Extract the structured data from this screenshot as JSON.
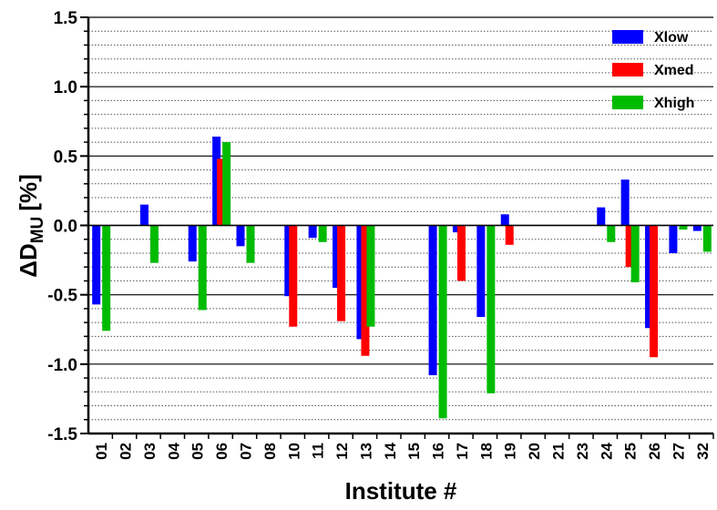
{
  "chart_data": {
    "type": "bar",
    "ylabel": {
      "main": "ΔD",
      "sub": "MU",
      "unit": "[%]"
    },
    "xlabel": "Institute #",
    "categories": [
      "01",
      "02",
      "03",
      "04",
      "05",
      "06",
      "07",
      "08",
      "10",
      "11",
      "12",
      "13",
      "14",
      "15",
      "16",
      "17",
      "18",
      "19",
      "20",
      "21",
      "23",
      "24",
      "25",
      "26",
      "27",
      "32"
    ],
    "series": [
      {
        "name": "Xlow",
        "color": "#0000ff",
        "values": [
          -0.57,
          null,
          0.15,
          null,
          -0.26,
          0.64,
          -0.15,
          null,
          -0.51,
          -0.09,
          -0.45,
          -0.82,
          null,
          null,
          -1.08,
          -0.05,
          -0.66,
          0.08,
          null,
          null,
          null,
          0.13,
          0.33,
          -0.74,
          -0.2,
          -0.04
        ]
      },
      {
        "name": "Xmed",
        "color": "#ff0000",
        "values": [
          null,
          null,
          null,
          null,
          null,
          0.48,
          null,
          null,
          -0.73,
          null,
          -0.69,
          -0.94,
          null,
          null,
          null,
          -0.4,
          null,
          -0.14,
          null,
          null,
          null,
          null,
          -0.3,
          -0.95,
          null,
          null
        ]
      },
      {
        "name": "Xhigh",
        "color": "#00bb00",
        "values": [
          -0.76,
          null,
          -0.27,
          null,
          -0.61,
          0.6,
          -0.27,
          null,
          null,
          -0.12,
          null,
          -0.73,
          null,
          null,
          -1.39,
          null,
          -1.21,
          null,
          null,
          null,
          null,
          -0.12,
          -0.41,
          null,
          -0.03,
          -0.19
        ]
      }
    ],
    "ylim": [
      -1.5,
      1.5
    ],
    "yticks": [
      {
        "value": -1.5,
        "label": "-1.5"
      },
      {
        "value": -1,
        "label": "-1.0"
      },
      -0.5,
      {
        "value": 0,
        "label": "0.0"
      },
      0.5,
      {
        "value": 1,
        "label": "1.0"
      },
      1.5
    ],
    "yminorticks": [
      -1.4,
      -1.3,
      -1.2,
      -1.1,
      -0.9,
      -0.8,
      -0.7,
      -0.6,
      -0.4,
      -0.3,
      -0.2,
      -0.1,
      0.1,
      0.2,
      0.3,
      0.4,
      0.6,
      0.7,
      0.8,
      0.9,
      1.1,
      1.2,
      1.3,
      1.4
    ],
    "grid": true,
    "legend": "upper right"
  }
}
